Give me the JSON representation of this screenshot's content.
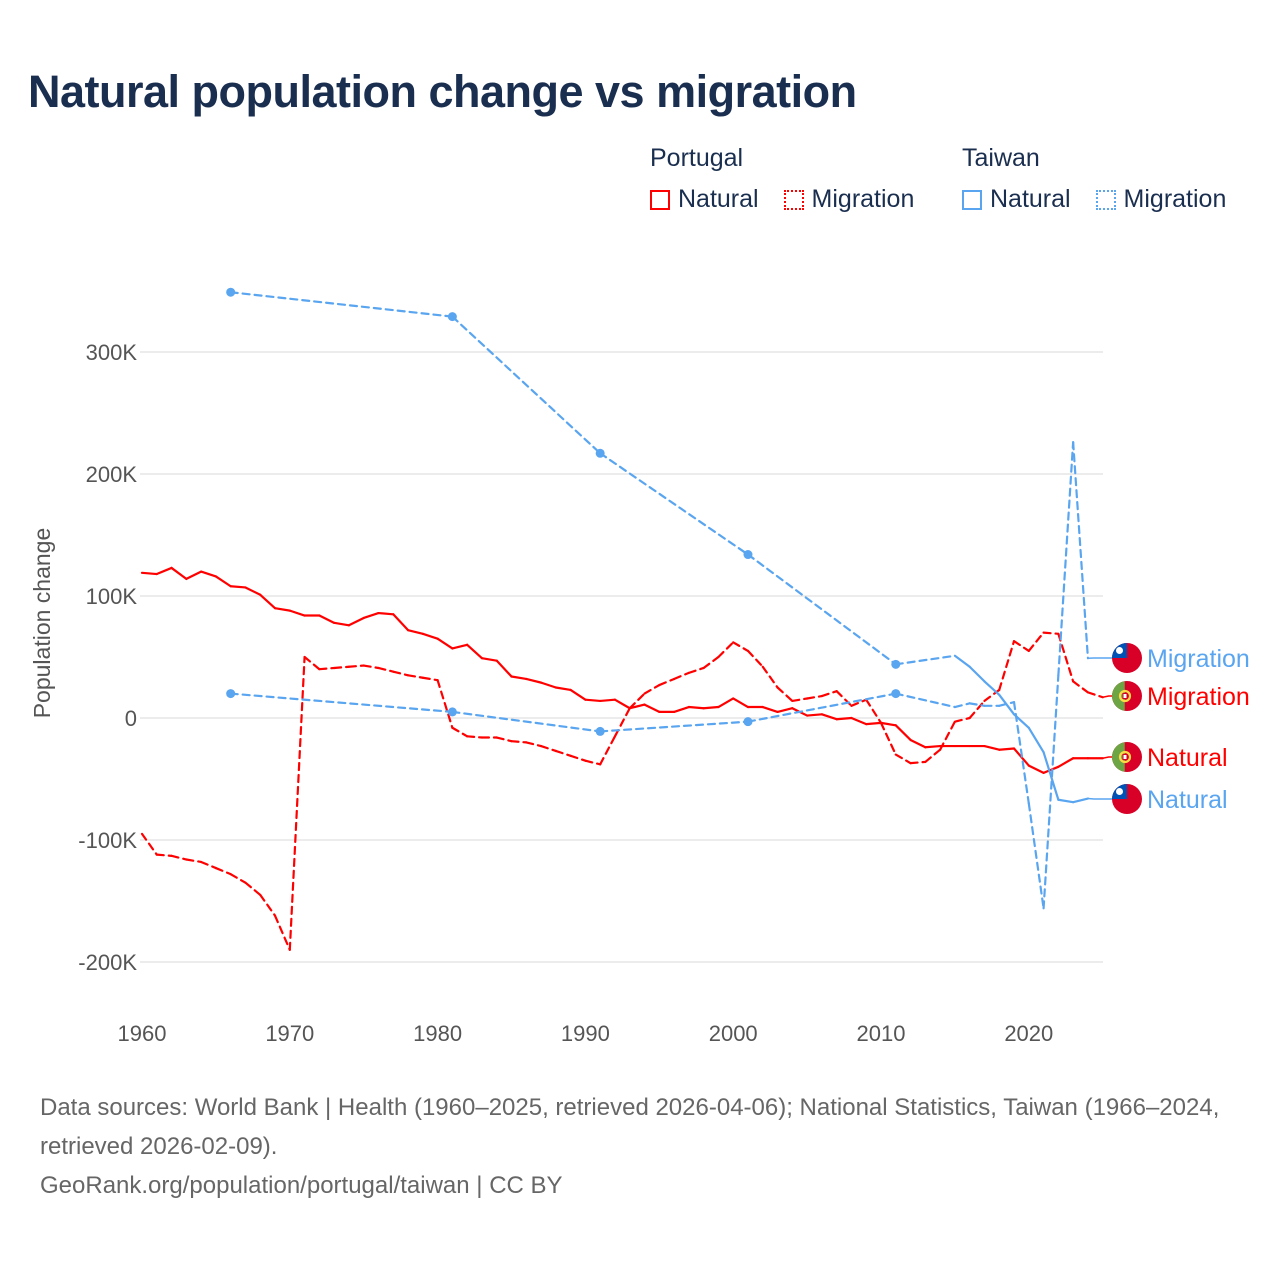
{
  "title": "Natural population change vs migration",
  "legend": {
    "groups": [
      {
        "name": "Portugal",
        "color": "#ff0000",
        "items": [
          "Natural",
          "Migration"
        ]
      },
      {
        "name": "Taiwan",
        "color": "#5aa5f0",
        "items": [
          "Natural",
          "Migration"
        ]
      }
    ]
  },
  "footer": {
    "sources": "Data sources: World Bank | Health (1960–2025, retrieved 2026-04-06); National Statistics, Taiwan (1966–2024, retrieved 2026-02-09).",
    "credit": "GeoRank.org/population/portugal/taiwan | CC BY"
  },
  "chart_data": {
    "type": "line",
    "title": "Natural population change vs migration",
    "xlabel": "",
    "ylabel": "Population change",
    "xlim": [
      1960,
      2025
    ],
    "ylim": [
      -200000,
      350000
    ],
    "x_ticks": [
      1960,
      1970,
      1980,
      1990,
      2000,
      2010,
      2020
    ],
    "x_tick_labels": [
      "1960",
      "1970",
      "1980",
      "1990",
      "2000",
      "2010",
      "2020"
    ],
    "y_ticks": [
      300000,
      200000,
      100000,
      0,
      -100000,
      -200000
    ],
    "y_tick_labels": [
      "300K",
      "200K",
      "100K",
      "0",
      "-100K",
      "-200K"
    ],
    "grid": true,
    "legend_position": "top-right",
    "series": [
      {
        "id": "pt-natural",
        "country": "Portugal",
        "name": "Natural",
        "color": "#ff0000",
        "style": "solid",
        "end_label": "Natural",
        "flag": "portugal-flag",
        "x": [
          1960,
          1961,
          1962,
          1963,
          1964,
          1965,
          1966,
          1967,
          1968,
          1969,
          1970,
          1971,
          1972,
          1973,
          1974,
          1975,
          1976,
          1977,
          1978,
          1979,
          1980,
          1981,
          1982,
          1983,
          1984,
          1985,
          1986,
          1987,
          1988,
          1989,
          1990,
          1991,
          1992,
          1993,
          1994,
          1995,
          1996,
          1997,
          1998,
          1999,
          2000,
          2001,
          2002,
          2003,
          2004,
          2005,
          2006,
          2007,
          2008,
          2009,
          2010,
          2011,
          2012,
          2013,
          2014,
          2015,
          2016,
          2017,
          2018,
          2019,
          2020,
          2021,
          2022,
          2023,
          2024,
          2025
        ],
        "y": [
          119000,
          118000,
          123000,
          114000,
          120000,
          116000,
          108000,
          107000,
          101000,
          90000,
          88000,
          84000,
          84000,
          78000,
          76000,
          82000,
          86000,
          85000,
          72000,
          69000,
          65000,
          57000,
          60000,
          49000,
          47000,
          34000,
          32000,
          29000,
          25000,
          23000,
          15000,
          14000,
          15000,
          8000,
          11000,
          5000,
          5000,
          9000,
          8000,
          9000,
          16000,
          9000,
          9000,
          5000,
          8000,
          2000,
          3000,
          -1000,
          0,
          -5000,
          -4000,
          -6000,
          -18000,
          -24000,
          -23000,
          -23000,
          -23000,
          -23000,
          -26000,
          -25000,
          -39000,
          -45000,
          -40000,
          -33000,
          -33000,
          -33000
        ]
      },
      {
        "id": "pt-migration",
        "country": "Portugal",
        "name": "Migration",
        "color": "#ff0000",
        "style": "dashed",
        "end_label": "Migration",
        "flag": "portugal-flag",
        "x": [
          1960,
          1961,
          1962,
          1963,
          1964,
          1965,
          1966,
          1967,
          1968,
          1969,
          1970,
          1971,
          1972,
          1973,
          1974,
          1975,
          1976,
          1977,
          1978,
          1979,
          1980,
          1981,
          1982,
          1983,
          1984,
          1985,
          1986,
          1987,
          1988,
          1989,
          1990,
          1991,
          1992,
          1993,
          1994,
          1995,
          1996,
          1997,
          1998,
          1999,
          2000,
          2001,
          2002,
          2003,
          2004,
          2005,
          2006,
          2007,
          2008,
          2009,
          2010,
          2011,
          2012,
          2013,
          2014,
          2015,
          2016,
          2017,
          2018,
          2019,
          2020,
          2021,
          2022,
          2023,
          2024,
          2025
        ],
        "y": [
          -95000,
          -112000,
          -113000,
          -116000,
          -118000,
          -123000,
          -128000,
          -135000,
          -145000,
          -162000,
          -190000,
          50000,
          40000,
          41000,
          42000,
          43000,
          41000,
          38000,
          35000,
          33000,
          31000,
          -8000,
          -15000,
          -16000,
          -16000,
          -19000,
          -20000,
          -23000,
          -27000,
          -31000,
          -35000,
          -38000,
          -15000,
          8000,
          20000,
          27000,
          32000,
          37000,
          41000,
          50000,
          62000,
          55000,
          42000,
          25000,
          14000,
          16000,
          18000,
          22000,
          10000,
          15000,
          -4000,
          -30000,
          -37000,
          -36000,
          -26000,
          -3000,
          0,
          14000,
          23000,
          63000,
          55000,
          70000,
          69000,
          30000,
          21000,
          17000
        ]
      },
      {
        "id": "tw-natural",
        "country": "Taiwan",
        "name": "Natural",
        "color": "#5aa5f0",
        "style": "solid",
        "end_label": "Natural",
        "flag": "taiwan-flag",
        "x": [
          1966,
          1981,
          1991,
          2001,
          2011,
          2015,
          2016,
          2017,
          2018,
          2019,
          2020,
          2021,
          2022,
          2023,
          2024
        ],
        "y": [
          349000,
          329000,
          217000,
          134000,
          44000,
          51000,
          42000,
          30000,
          19000,
          3000,
          -8000,
          -28000,
          -67000,
          -69000,
          -66000
        ]
      },
      {
        "id": "tw-migration",
        "country": "Taiwan",
        "name": "Migration",
        "color": "#5aa5f0",
        "style": "dashed",
        "end_label": "Migration",
        "flag": "taiwan-flag",
        "x": [
          1966,
          1981,
          1991,
          2001,
          2011,
          2015,
          2016,
          2017,
          2018,
          2019,
          2020,
          2021,
          2022,
          2023,
          2024
        ],
        "y": [
          20000,
          5000,
          -11000,
          -3000,
          20000,
          9000,
          12000,
          10000,
          10000,
          13000,
          -70000,
          -156000,
          35000,
          226000,
          49000
        ]
      }
    ]
  }
}
